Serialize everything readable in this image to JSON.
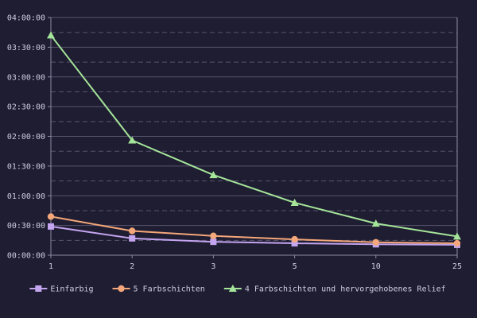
{
  "chart_data": {
    "type": "line",
    "title": "",
    "xlabel": "",
    "ylabel": "",
    "categories": [
      "1",
      "2",
      "3",
      "5",
      "10",
      "25"
    ],
    "y_unit": "minutes",
    "ylim": [
      0,
      240
    ],
    "y_ticks": [
      {
        "value": 0,
        "label": "00:00:00"
      },
      {
        "value": 30,
        "label": "00:30:00"
      },
      {
        "value": 60,
        "label": "01:00:00"
      },
      {
        "value": 90,
        "label": "01:30:00"
      },
      {
        "value": 120,
        "label": "02:00:00"
      },
      {
        "value": 150,
        "label": "02:30:00"
      },
      {
        "value": 180,
        "label": "03:00:00"
      },
      {
        "value": 210,
        "label": "03:30:00"
      },
      {
        "value": 240,
        "label": "04:00:00"
      }
    ],
    "minor_grid_values": [
      15,
      45,
      75,
      105,
      135,
      165,
      195,
      225
    ],
    "grid": true,
    "legend_position": "bottom",
    "series": [
      {
        "name": "Einfarbig",
        "color": "#c4a5f0",
        "marker": "square",
        "values": [
          29,
          17,
          13.5,
          12,
          11,
          10.5
        ]
      },
      {
        "name": "5 Farbschichten",
        "color": "#f4a77a",
        "marker": "circle",
        "values": [
          39,
          24.5,
          19.5,
          16,
          13,
          12
        ]
      },
      {
        "name": "4 Farbschichten und hervorgehobenes Relief",
        "color": "#a5e59a",
        "marker": "triangle",
        "values": [
          222,
          116,
          81,
          53,
          32,
          19
        ]
      }
    ]
  }
}
